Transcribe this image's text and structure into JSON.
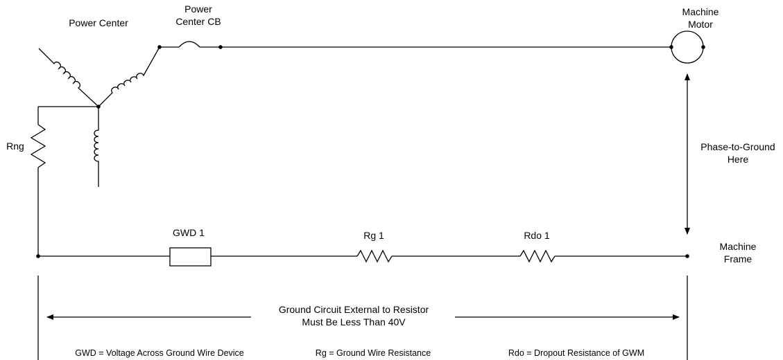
{
  "labels": {
    "power_center": "Power Center",
    "power_center_cb_line1": "Power",
    "power_center_cb_line2": "Center CB",
    "machine_motor_line1": "Machine",
    "machine_motor_line2": "Motor",
    "rng": "Rng",
    "phase_to_ground_line1": "Phase-to-Ground",
    "phase_to_ground_line2": "Here",
    "gwd1": "GWD 1",
    "rg1": "Rg 1",
    "rdo1": "Rdo 1",
    "machine_frame_line1": "Machine",
    "machine_frame_line2": "Frame",
    "ground_circuit_line1": "Ground Circuit External to Resistor",
    "ground_circuit_line2": "Must Be Less Than 40V"
  },
  "legend": {
    "gwd": "GWD = Voltage Across Ground Wire Device",
    "rg": "Rg = Ground Wire Resistance",
    "rdo": "Rdo = Dropout Resistance of GWM"
  }
}
